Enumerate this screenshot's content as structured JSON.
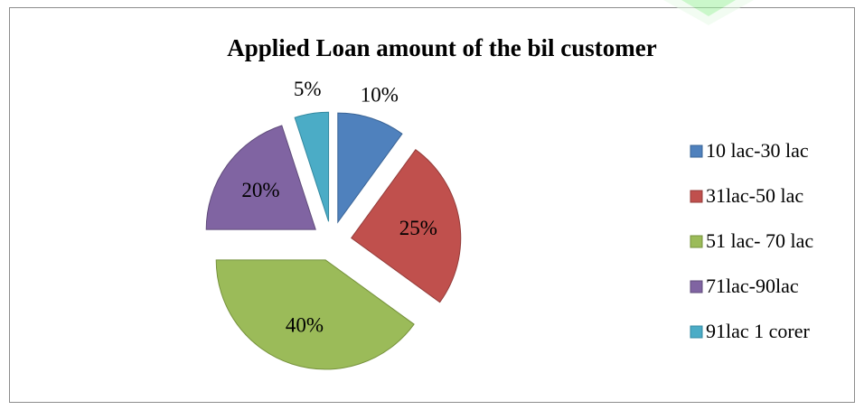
{
  "chart_data": {
    "type": "pie",
    "title": "Applied Loan amount of the bil customer",
    "categories": [
      "10 lac-30 lac",
      "31lac-50 lac",
      "51 lac- 70 lac",
      "71lac-90lac",
      "91lac 1 corer"
    ],
    "values": [
      10,
      25,
      40,
      20,
      5
    ],
    "data_labels": [
      "10%",
      "25%",
      "40%",
      "20%",
      "5%"
    ],
    "colors": [
      "#4f81bd",
      "#c0504d",
      "#9bbb59",
      "#8064a2",
      "#4bacc6"
    ],
    "stroke_colors": [
      "#3a6496",
      "#943c3a",
      "#76923c",
      "#5f4b7a",
      "#3389a0"
    ],
    "exploded": true,
    "legend_position": "right",
    "grid": false
  },
  "watermark": {
    "icon": "green-chevron-logo-icon",
    "color": "#44dd44"
  }
}
